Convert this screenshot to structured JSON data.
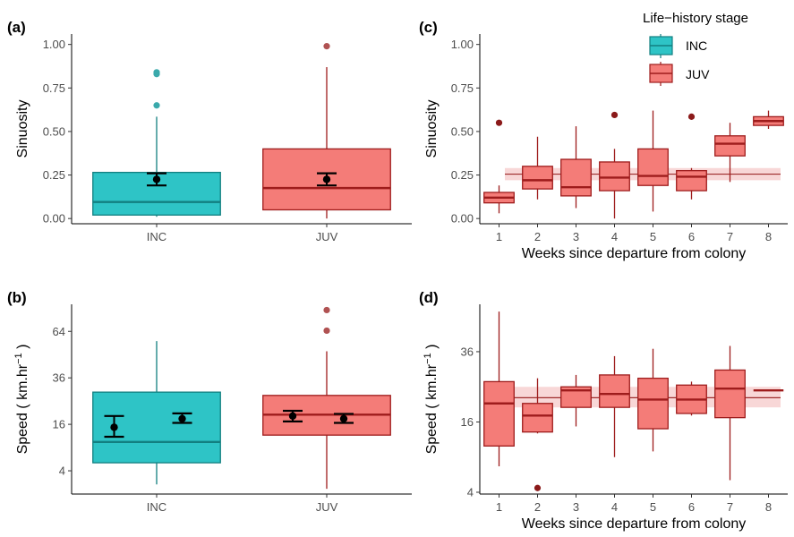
{
  "legend": {
    "title": "Life−history stage",
    "items": [
      {
        "label": "INC",
        "fill": "#2ec4c6",
        "stroke": "#127f80"
      },
      {
        "label": "JUV",
        "fill": "#f47c78",
        "stroke": "#9e1c1c"
      }
    ]
  },
  "colors": {
    "inc_fill": "#2ec4c6",
    "inc_stroke": "#127f80",
    "inc_point": "#3aa9ab",
    "juv_fill": "#f47c78",
    "juv_stroke": "#9e1c1c",
    "juv_point": "#b05252",
    "juv_outlier_dark": "#8b1a1a",
    "band": "#f6c9c9",
    "band_line": "#9e2b2b"
  },
  "chart_data": [
    {
      "panel": "(a)",
      "type": "box",
      "xlabel": "",
      "ylabel": "Sinuosity",
      "ylim": [
        -0.03,
        1.06
      ],
      "yticks": [
        0.0,
        0.25,
        0.5,
        0.75,
        1.0
      ],
      "ytick_labels": [
        "0.00",
        "0.25",
        "0.50",
        "0.75",
        "1.00"
      ],
      "categories": [
        "INC",
        "JUV"
      ],
      "boxes": [
        {
          "group": "INC",
          "whisker_low": 0.01,
          "q1": 0.02,
          "median": 0.095,
          "q3": 0.265,
          "whisker_high": 0.585,
          "outliers": [
            0.65,
            0.83,
            0.84
          ]
        },
        {
          "group": "JUV",
          "whisker_low": 0.0,
          "q1": 0.05,
          "median": 0.175,
          "q3": 0.4,
          "whisker_high": 0.87,
          "outliers": [
            0.99
          ]
        }
      ],
      "means": [
        {
          "group": "INC",
          "mean": 0.225,
          "low": 0.19,
          "high": 0.26
        },
        {
          "group": "JUV",
          "mean": 0.225,
          "low": 0.19,
          "high": 0.26
        }
      ]
    },
    {
      "panel": "(b)",
      "type": "box",
      "xlabel": "",
      "ylabel": "Speed ( km.hr−1 )",
      "ylabel_parts": {
        "main": "Speed ( km.hr",
        "sup": "−1",
        "close": " )"
      },
      "scale": "sqrt",
      "ylim": [
        1.0,
        84
      ],
      "yticks": [
        4,
        16,
        36,
        64
      ],
      "ytick_labels": [
        "4",
        "16",
        "36",
        "64"
      ],
      "categories": [
        "INC",
        "JUV"
      ],
      "boxes": [
        {
          "group": "INC",
          "whisker_low": 2.0,
          "q1": 5.5,
          "median": 10.5,
          "q3": 29.0,
          "whisker_high": 57.5,
          "outliers": []
        },
        {
          "group": "JUV",
          "whisker_low": 1.5,
          "q1": 12.5,
          "median": 19.5,
          "q3": 27.5,
          "whisker_high": 51.0,
          "outliers": [
            64.5,
            79.5
          ]
        }
      ],
      "means": [
        {
          "group": "INC",
          "offset": -0.25,
          "mean": 15.0,
          "low": 12.0,
          "high": 19.0
        },
        {
          "group": "INC",
          "offset": 0.15,
          "mean": 18.0,
          "low": 16.5,
          "high": 20.0
        },
        {
          "group": "JUV",
          "offset": -0.2,
          "mean": 19.0,
          "low": 17.0,
          "high": 21.0
        },
        {
          "group": "JUV",
          "offset": 0.1,
          "mean": 18.0,
          "low": 16.5,
          "high": 19.8
        }
      ]
    },
    {
      "panel": "(c)",
      "type": "box",
      "xlabel": "Weeks since departure from colony",
      "ylabel": "Sinuosity",
      "ylim": [
        -0.03,
        1.06
      ],
      "yticks": [
        0.0,
        0.25,
        0.5,
        0.75,
        1.0
      ],
      "ytick_labels": [
        "0.00",
        "0.25",
        "0.50",
        "0.75",
        "1.00"
      ],
      "categories": [
        "1",
        "2",
        "3",
        "4",
        "5",
        "6",
        "7",
        "8"
      ],
      "band": {
        "center": 0.255,
        "low": 0.22,
        "high": 0.29
      },
      "boxes": [
        {
          "group": "1",
          "whisker_low": 0.03,
          "q1": 0.09,
          "median": 0.12,
          "q3": 0.15,
          "whisker_high": 0.19,
          "outliers": [
            0.55
          ]
        },
        {
          "group": "2",
          "whisker_low": 0.11,
          "q1": 0.17,
          "median": 0.22,
          "q3": 0.3,
          "whisker_high": 0.47,
          "outliers": []
        },
        {
          "group": "3",
          "whisker_low": 0.06,
          "q1": 0.13,
          "median": 0.18,
          "q3": 0.34,
          "whisker_high": 0.53,
          "outliers": []
        },
        {
          "group": "4",
          "whisker_low": 0.0,
          "q1": 0.16,
          "median": 0.235,
          "q3": 0.325,
          "whisker_high": 0.4,
          "outliers": [
            0.595
          ]
        },
        {
          "group": "5",
          "whisker_low": 0.04,
          "q1": 0.19,
          "median": 0.245,
          "q3": 0.4,
          "whisker_high": 0.62,
          "outliers": []
        },
        {
          "group": "6",
          "whisker_low": 0.11,
          "q1": 0.16,
          "median": 0.24,
          "q3": 0.275,
          "whisker_high": 0.29,
          "outliers": [
            0.585
          ]
        },
        {
          "group": "7",
          "whisker_low": 0.21,
          "q1": 0.36,
          "median": 0.43,
          "q3": 0.475,
          "whisker_high": 0.55,
          "outliers": []
        },
        {
          "group": "8",
          "whisker_low": 0.515,
          "q1": 0.535,
          "median": 0.56,
          "q3": 0.585,
          "whisker_high": 0.62,
          "outliers": []
        }
      ]
    },
    {
      "panel": "(d)",
      "type": "box",
      "xlabel": "Weeks since departure from colony",
      "ylabel": "Speed ( km.hr−1 )",
      "ylabel_parts": {
        "main": "Speed ( km.hr",
        "sup": "−1",
        "close": " )"
      },
      "scale": "sqrt",
      "ylim": [
        3.8,
        54
      ],
      "yticks": [
        4,
        16,
        36
      ],
      "ytick_labels": [
        "4",
        "16",
        "36"
      ],
      "categories": [
        "1",
        "2",
        "3",
        "4",
        "5",
        "6",
        "7",
        "8"
      ],
      "band": {
        "center": 22.0,
        "low": 19.5,
        "high": 25.0
      },
      "boxes": [
        {
          "group": "1",
          "whisker_low": 7.5,
          "q1": 11.0,
          "median": 20.5,
          "q3": 26.5,
          "whisker_high": 51.0,
          "outliers": []
        },
        {
          "group": "2",
          "whisker_low": 13.5,
          "q1": 13.8,
          "median": 17.5,
          "q3": 20.5,
          "whisker_high": 27.5,
          "outliers": [
            4.5
          ]
        },
        {
          "group": "3",
          "whisker_low": 15.0,
          "q1": 19.5,
          "median": 24.0,
          "q3": 25.0,
          "whisker_high": 28.5,
          "outliers": []
        },
        {
          "group": "4",
          "whisker_low": 9.0,
          "q1": 19.5,
          "median": 23.0,
          "q3": 28.5,
          "whisker_high": 34.5,
          "outliers": []
        },
        {
          "group": "5",
          "whisker_low": 10.0,
          "q1": 14.5,
          "median": 21.5,
          "q3": 27.5,
          "whisker_high": 37.0,
          "outliers": []
        },
        {
          "group": "6",
          "whisker_low": 17.5,
          "q1": 18.0,
          "median": 21.5,
          "q3": 25.5,
          "whisker_high": 26.5,
          "outliers": []
        },
        {
          "group": "7",
          "whisker_low": 5.5,
          "q1": 17.0,
          "median": 24.5,
          "q3": 30.0,
          "whisker_high": 38.0,
          "outliers": []
        },
        {
          "group": "8",
          "whisker_low": 24.0,
          "q1": 24.0,
          "median": 24.0,
          "q3": 24.0,
          "whisker_high": 24.0,
          "outliers": []
        }
      ]
    }
  ]
}
